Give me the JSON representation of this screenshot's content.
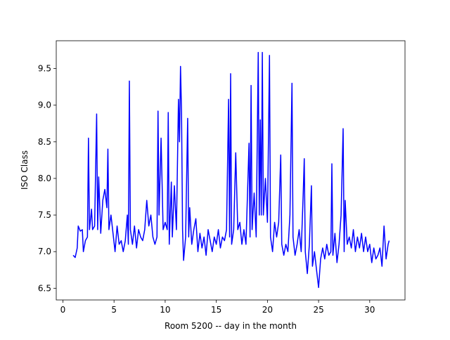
{
  "chart_data": {
    "type": "line",
    "xlabel": "Room 5200 -- day in the month",
    "ylabel": "ISO Class",
    "color": "#0000ff",
    "x": [
      1.0,
      1.2,
      1.4,
      1.5,
      1.7,
      1.9,
      2.0,
      2.2,
      2.4,
      2.5,
      2.6,
      2.8,
      2.9,
      3.1,
      3.3,
      3.4,
      3.5,
      3.7,
      3.9,
      4.1,
      4.3,
      4.4,
      4.5,
      4.7,
      4.9,
      5.1,
      5.3,
      5.5,
      5.7,
      5.9,
      6.1,
      6.3,
      6.4,
      6.5,
      6.6,
      6.8,
      7.0,
      7.2,
      7.4,
      7.6,
      7.8,
      8.0,
      8.2,
      8.4,
      8.6,
      8.8,
      9.0,
      9.2,
      9.3,
      9.4,
      9.6,
      9.8,
      10.0,
      10.2,
      10.3,
      10.4,
      10.6,
      10.7,
      10.9,
      11.1,
      11.3,
      11.4,
      11.5,
      11.6,
      11.7,
      11.8,
      12.0,
      12.2,
      12.3,
      12.4,
      12.6,
      12.8,
      13.0,
      13.2,
      13.4,
      13.6,
      13.8,
      14.0,
      14.2,
      14.4,
      14.6,
      14.8,
      15.0,
      15.2,
      15.4,
      15.6,
      15.8,
      16.0,
      16.2,
      16.3,
      16.4,
      16.5,
      16.7,
      16.9,
      17.1,
      17.3,
      17.5,
      17.7,
      17.9,
      18.2,
      18.3,
      18.4,
      18.5,
      18.7,
      18.9,
      19.1,
      19.2,
      19.3,
      19.4,
      19.5,
      19.6,
      19.8,
      20.0,
      20.2,
      20.3,
      20.5,
      20.7,
      20.9,
      21.1,
      21.3,
      21.4,
      21.6,
      21.8,
      22.0,
      22.2,
      22.4,
      22.5,
      22.7,
      22.9,
      23.1,
      23.3,
      23.5,
      23.6,
      23.7,
      23.9,
      24.1,
      24.3,
      24.4,
      24.6,
      24.8,
      25.0,
      25.2,
      25.4,
      25.6,
      25.8,
      26.0,
      26.2,
      26.3,
      26.4,
      26.6,
      26.8,
      27.0,
      27.2,
      27.4,
      27.5,
      27.6,
      27.8,
      28.0,
      28.2,
      28.4,
      28.6,
      28.8,
      29.0,
      29.2,
      29.4,
      29.6,
      29.8,
      30.0,
      30.2,
      30.4,
      30.6,
      30.8,
      31.0,
      31.2,
      31.4,
      31.6,
      31.8,
      31.9
    ],
    "values": [
      6.95,
      6.92,
      7.05,
      7.35,
      7.28,
      7.3,
      7.0,
      7.15,
      7.2,
      8.55,
      7.3,
      7.58,
      7.3,
      7.35,
      8.88,
      7.3,
      8.02,
      7.25,
      7.7,
      7.85,
      7.6,
      8.4,
      7.3,
      7.5,
      7.25,
      7.0,
      7.35,
      7.1,
      7.15,
      7.0,
      7.15,
      7.5,
      7.1,
      9.33,
      7.3,
      7.1,
      7.35,
      7.05,
      7.3,
      7.2,
      7.15,
      7.3,
      7.7,
      7.35,
      7.5,
      7.2,
      7.1,
      7.2,
      8.92,
      7.5,
      8.55,
      7.3,
      7.4,
      7.3,
      8.9,
      7.1,
      7.95,
      7.2,
      7.9,
      7.3,
      9.08,
      8.5,
      9.53,
      8.9,
      7.3,
      6.88,
      7.2,
      8.82,
      7.2,
      7.6,
      7.1,
      7.3,
      7.45,
      7.0,
      7.25,
      7.05,
      7.2,
      6.95,
      7.3,
      7.15,
      7.0,
      7.2,
      7.1,
      7.3,
      7.05,
      7.2,
      7.15,
      7.3,
      9.08,
      7.2,
      9.43,
      7.1,
      7.3,
      8.35,
      7.3,
      7.4,
      7.1,
      7.3,
      7.1,
      8.48,
      7.2,
      9.27,
      7.3,
      7.8,
      7.2,
      9.72,
      7.5,
      8.8,
      7.5,
      9.72,
      7.5,
      8.0,
      7.4,
      9.68,
      7.2,
      7.0,
      7.4,
      7.2,
      7.4,
      8.32,
      7.1,
      6.95,
      7.1,
      7.0,
      7.5,
      9.3,
      7.2,
      6.95,
      7.1,
      7.3,
      7.0,
      7.8,
      8.27,
      7.0,
      6.7,
      7.1,
      7.9,
      6.8,
      7.0,
      6.75,
      6.51,
      6.9,
      7.05,
      6.9,
      7.1,
      6.95,
      7.0,
      8.2,
      6.95,
      7.25,
      6.85,
      7.1,
      7.5,
      8.68,
      7.0,
      7.7,
      7.1,
      7.2,
      7.05,
      7.3,
      7.0,
      7.2,
      7.05,
      7.25,
      7.0,
      7.2,
      7.0,
      7.1,
      6.85,
      7.05,
      6.9,
      6.95,
      7.05,
      6.8,
      7.35,
      6.9,
      7.1,
      7.15
    ],
    "xlim": [
      -0.65,
      33.45
    ],
    "ylim": [
      6.34,
      9.88
    ],
    "xticks": [
      0,
      5,
      10,
      15,
      20,
      25,
      30
    ],
    "yticks": [
      6.5,
      {
        "value": 7,
        "label": "7.0"
      },
      7.5,
      {
        "value": 8,
        "label": "8.0"
      },
      8.5,
      {
        "value": 9,
        "label": "9.0"
      },
      9.5
    ]
  }
}
